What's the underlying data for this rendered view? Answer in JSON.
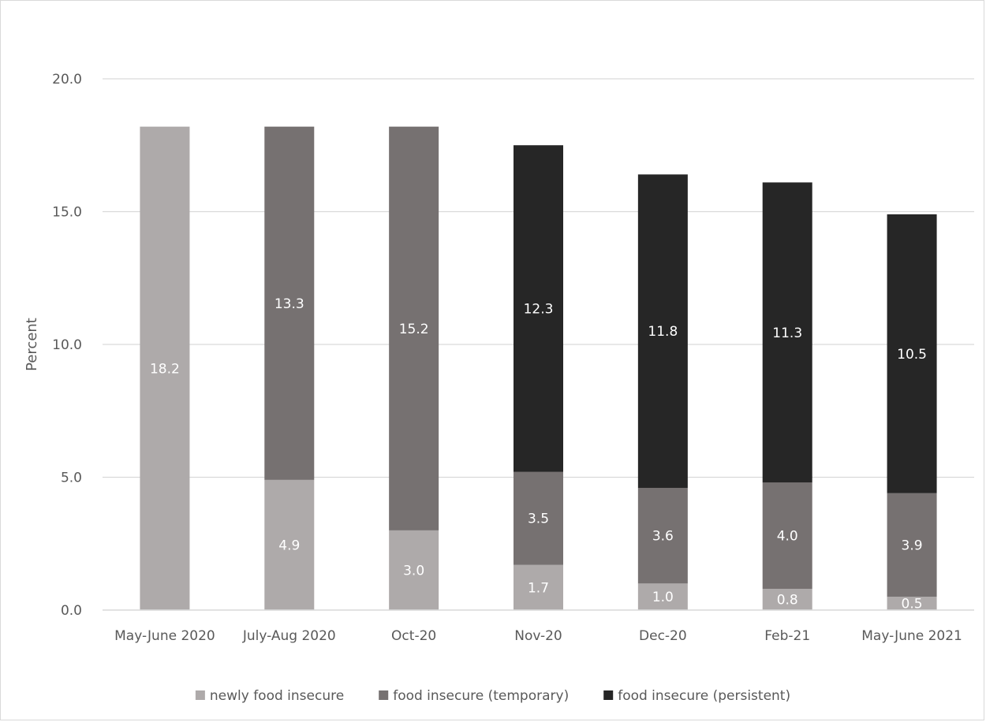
{
  "chart_data": {
    "type": "bar",
    "stacked": true,
    "title": "",
    "xlabel": "",
    "ylabel": "Percent",
    "ylim": [
      0,
      20
    ],
    "yticks": [
      "0.0",
      "5.0",
      "10.0",
      "15.0",
      "20.0"
    ],
    "grid": true,
    "legend_position": "bottom",
    "categories": [
      "May-June 2020",
      "July-Aug 2020",
      "Oct-20",
      "Nov-20",
      "Dec-20",
      "Feb-21",
      "May-June 2021"
    ],
    "series": [
      {
        "name": "newly food insecure",
        "color": "#aeaaaa",
        "label_color": "#ffffff",
        "values": [
          18.2,
          4.9,
          3.0,
          1.7,
          1.0,
          0.8,
          0.5
        ]
      },
      {
        "name": "food insecure (temporary)",
        "color": "#767171",
        "label_color": "#ffffff",
        "values": [
          null,
          13.3,
          15.2,
          3.5,
          3.6,
          4.0,
          3.9
        ]
      },
      {
        "name": "food insecure (persistent)",
        "color": "#262626",
        "label_color": "#ffffff",
        "values": [
          null,
          null,
          null,
          12.3,
          11.8,
          11.3,
          10.5
        ]
      }
    ]
  }
}
